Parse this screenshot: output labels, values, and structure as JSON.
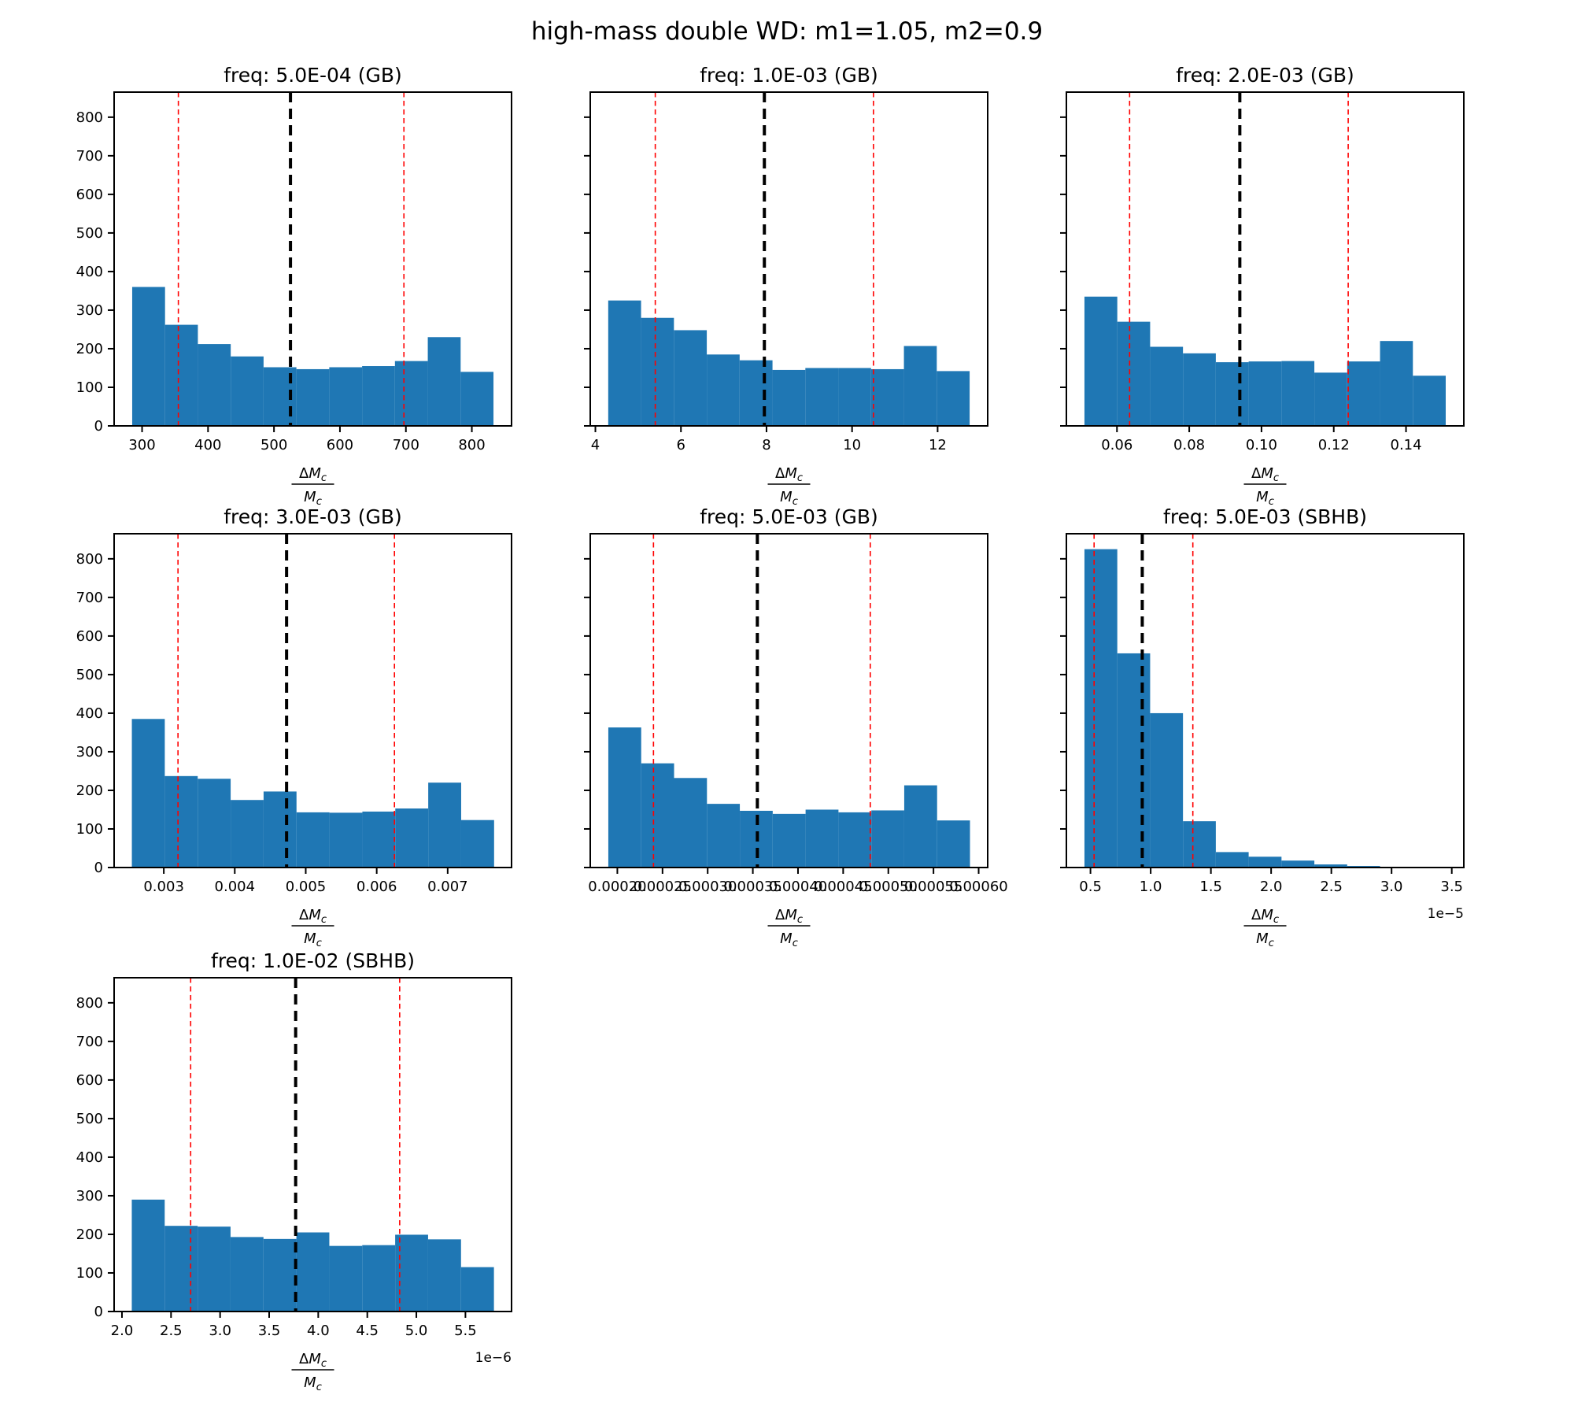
{
  "figure": {
    "title": "high-mass double WD: m1=1.05, m2=0.9",
    "xlabel": "ΔM_c / M_c",
    "xlabel_fraction": {
      "numerator_prefix": "Δ",
      "numerator_main": "M",
      "denominator_main": "M",
      "subscript": "c"
    },
    "colors": {
      "bar": "#1f77b4",
      "median_line": "#000000",
      "percentile_line": "#ff0000",
      "spine": "#000000",
      "text": "#000000"
    },
    "ylim": [
      0,
      865
    ],
    "ytick_vals": [
      0,
      100,
      200,
      300,
      400,
      500,
      600,
      700,
      800
    ],
    "ytick_labels": [
      "0",
      "100",
      "200",
      "300",
      "400",
      "500",
      "600",
      "700",
      "800"
    ],
    "legend": "none",
    "grid": "off"
  },
  "chart_data": [
    {
      "type": "bar",
      "title": "freq: 5.0E-04 (GB)",
      "row": 0,
      "col": 0,
      "bin_start": 285,
      "bin_width": 49.8,
      "counts": [
        360,
        262,
        212,
        180,
        152,
        147,
        152,
        155,
        168,
        230,
        140
      ],
      "xlim": [
        257.6,
        860.2
      ],
      "xtick_vals": [
        300,
        400,
        500,
        600,
        700,
        800
      ],
      "xtick_labels": [
        "300",
        "400",
        "500",
        "600",
        "700",
        "800"
      ],
      "lines": {
        "p16": 355,
        "median": 525,
        "p84": 697
      },
      "show_ylabels": true,
      "offset": ""
    },
    {
      "type": "bar",
      "title": "freq: 1.0E-03 (GB)",
      "row": 0,
      "col": 1,
      "bin_start": 4.3,
      "bin_width": 0.768,
      "counts": [
        325,
        280,
        248,
        185,
        170,
        145,
        150,
        150,
        147,
        207,
        142
      ],
      "xlim": [
        3.88,
        13.17
      ],
      "xtick_vals": [
        4,
        6,
        8,
        10,
        12
      ],
      "xtick_labels": [
        "4",
        "6",
        "8",
        "10",
        "12"
      ],
      "lines": {
        "p16": 5.4,
        "median": 7.95,
        "p84": 10.5
      },
      "show_ylabels": false,
      "offset": ""
    },
    {
      "type": "bar",
      "title": "freq: 2.0E-03 (GB)",
      "row": 0,
      "col": 2,
      "bin_start": 0.051,
      "bin_width": 0.00909,
      "counts": [
        335,
        270,
        205,
        188,
        165,
        167,
        168,
        138,
        167,
        220,
        130
      ],
      "xlim": [
        0.046,
        0.156
      ],
      "xtick_vals": [
        0.06,
        0.08,
        0.1,
        0.12,
        0.14
      ],
      "xtick_labels": [
        "0.06",
        "0.08",
        "0.10",
        "0.12",
        "0.14"
      ],
      "lines": {
        "p16": 0.0635,
        "median": 0.094,
        "p84": 0.124
      },
      "show_ylabels": false,
      "offset": ""
    },
    {
      "type": "bar",
      "title": "freq: 3.0E-03 (GB)",
      "row": 1,
      "col": 0,
      "bin_start": 0.00255,
      "bin_width": 0.000464,
      "counts": [
        385,
        237,
        230,
        175,
        197,
        143,
        142,
        145,
        153,
        220,
        123
      ],
      "xlim": [
        0.0023,
        0.0079
      ],
      "xtick_vals": [
        0.003,
        0.004,
        0.005,
        0.006,
        0.007
      ],
      "xtick_labels": [
        "0.003",
        "0.004",
        "0.005",
        "0.006",
        "0.007"
      ],
      "lines": {
        "p16": 0.0032,
        "median": 0.00473,
        "p84": 0.00625
      },
      "show_ylabels": true,
      "offset": ""
    },
    {
      "type": "bar",
      "title": "freq: 5.0E-03 (GB)",
      "row": 1,
      "col": 1,
      "bin_start": 0.00019,
      "bin_width": 3.64e-05,
      "counts": [
        363,
        270,
        232,
        165,
        147,
        139,
        150,
        143,
        148,
        213,
        122
      ],
      "xlim": [
        0.00017,
        0.00061
      ],
      "xtick_vals": [
        0.0002,
        0.00025,
        0.0003,
        0.00035,
        0.0004,
        0.00045,
        0.0005,
        0.00055,
        0.0006
      ],
      "xtick_labels": [
        "0.00020",
        "0.00025",
        "0.00030",
        "0.00035",
        "0.00040",
        "0.00045",
        "0.00050",
        "0.00055",
        "0.00060"
      ],
      "lines": {
        "p16": 0.00024,
        "median": 0.000355,
        "p84": 0.00048
      },
      "show_ylabels": false,
      "offset": ""
    },
    {
      "type": "bar",
      "title": "freq: 5.0E-03 (SBHB)",
      "row": 1,
      "col": 2,
      "bin_start": 0.45,
      "bin_width": 0.2727,
      "counts": [
        825,
        555,
        400,
        120,
        40,
        28,
        18,
        8,
        4,
        2,
        1
      ],
      "xlim": [
        0.3,
        3.6
      ],
      "xtick_vals": [
        0.5,
        1.0,
        1.5,
        2.0,
        2.5,
        3.0,
        3.5
      ],
      "xtick_labels": [
        "0.5",
        "1.0",
        "1.5",
        "2.0",
        "2.5",
        "3.0",
        "3.5"
      ],
      "lines": {
        "p16": 0.53,
        "median": 0.93,
        "p84": 1.35
      },
      "show_ylabels": false,
      "offset": "1e−5"
    },
    {
      "type": "bar",
      "title": "freq: 1.0E-02 (SBHB)",
      "row": 2,
      "col": 0,
      "bin_start": 2.1,
      "bin_width": 0.3355,
      "counts": [
        290,
        222,
        220,
        193,
        188,
        205,
        170,
        172,
        199,
        187,
        115
      ],
      "xlim": [
        1.92,
        5.97
      ],
      "xtick_vals": [
        2.0,
        2.5,
        3.0,
        3.5,
        4.0,
        4.5,
        5.0,
        5.5
      ],
      "xtick_labels": [
        "2.0",
        "2.5",
        "3.0",
        "3.5",
        "4.0",
        "4.5",
        "5.0",
        "5.5"
      ],
      "lines": {
        "p16": 2.7,
        "median": 3.77,
        "p84": 4.83
      },
      "show_ylabels": true,
      "offset": "1e−6"
    }
  ]
}
